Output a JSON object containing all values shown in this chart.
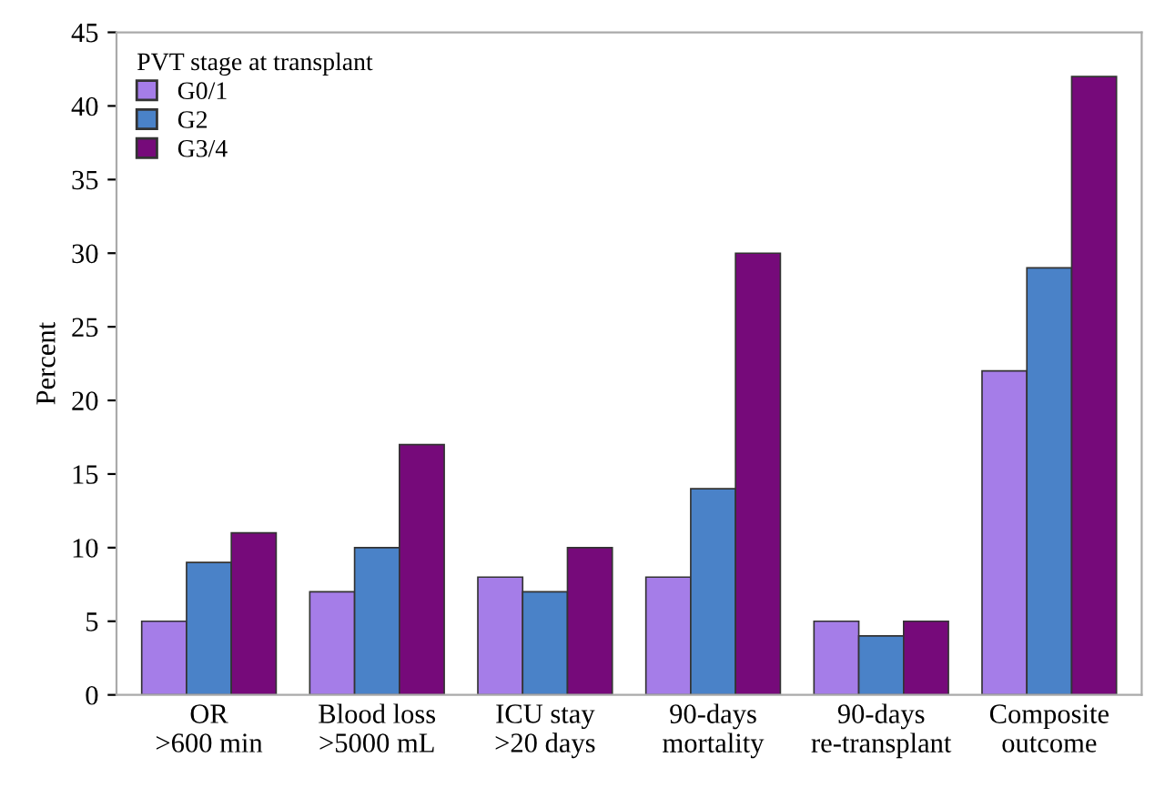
{
  "chart_data": {
    "type": "bar",
    "ylabel": "Percent",
    "legend_title": "PVT stage at transplant",
    "categories": [
      "OR\n>600 min",
      "Blood loss\n>5000 mL",
      "ICU stay\n>20 days",
      "90-days\nmortality",
      "90-days\nre-transplant",
      "Composite\noutcome"
    ],
    "series": [
      {
        "name": "G0/1",
        "color": "#a57de8",
        "values": [
          5,
          7,
          8,
          8,
          5,
          22
        ]
      },
      {
        "name": "G2",
        "color": "#4a82c8",
        "values": [
          9,
          10,
          7,
          14,
          4,
          29
        ]
      },
      {
        "name": "G3/4",
        "color": "#760a7a",
        "values": [
          11,
          17,
          10,
          30,
          5,
          42
        ]
      }
    ],
    "ylim": [
      0,
      45
    ],
    "yticks": [
      0,
      5,
      10,
      15,
      20,
      25,
      30,
      35,
      40,
      45
    ],
    "grid": false,
    "legend": "top left"
  }
}
